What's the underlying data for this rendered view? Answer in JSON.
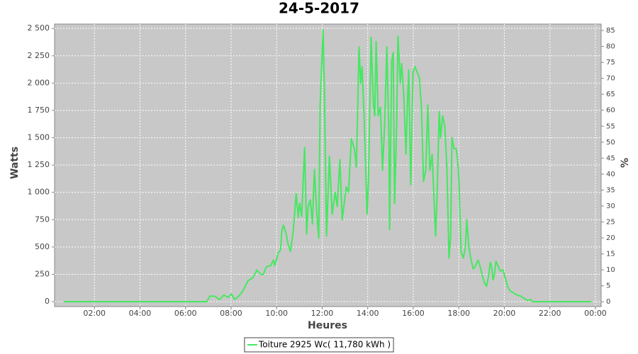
{
  "chart_data": {
    "type": "line",
    "title": "24-5-2017",
    "x_label": "Heures",
    "y_label": "Watts",
    "y2_label": "%",
    "x": [
      0.65,
      6.94,
      7.06,
      7.28,
      7.5,
      7.68,
      7.87,
      8.02,
      8.15,
      8.34,
      8.52,
      8.74,
      8.96,
      9.14,
      9.3,
      9.42,
      9.55,
      9.74,
      9.86,
      9.92,
      10.08,
      10.17,
      10.23,
      10.3,
      10.42,
      10.51,
      10.61,
      10.73,
      10.86,
      10.95,
      11.01,
      11.1,
      11.23,
      11.32,
      11.38,
      11.48,
      11.57,
      11.66,
      11.76,
      11.85,
      11.91,
      12.04,
      12.1,
      12.19,
      12.32,
      12.44,
      12.57,
      12.66,
      12.78,
      12.88,
      12.97,
      13.06,
      13.16,
      13.28,
      13.41,
      13.5,
      13.62,
      13.69,
      13.75,
      13.84,
      13.97,
      14.03,
      14.15,
      14.25,
      14.31,
      14.37,
      14.46,
      14.56,
      14.65,
      14.74,
      14.84,
      14.93,
      14.96,
      15.05,
      15.12,
      15.18,
      15.27,
      15.33,
      15.43,
      15.49,
      15.58,
      15.68,
      15.74,
      15.8,
      15.89,
      15.99,
      16.08,
      16.17,
      16.27,
      16.36,
      16.45,
      16.55,
      16.64,
      16.73,
      16.83,
      16.92,
      16.98,
      17.05,
      17.14,
      17.2,
      17.29,
      17.39,
      17.48,
      17.57,
      17.64,
      17.7,
      17.79,
      17.88,
      17.95,
      18.01,
      18.1,
      18.2,
      18.29,
      18.35,
      18.44,
      18.54,
      18.63,
      18.72,
      18.85,
      18.94,
      19.04,
      19.13,
      19.22,
      19.32,
      19.38,
      19.44,
      19.5,
      19.56,
      19.63,
      19.72,
      19.81,
      19.94,
      20.06,
      20.16,
      20.25,
      20.4,
      20.56,
      20.72,
      20.87,
      21.03,
      21.15,
      21.24,
      23.83
    ],
    "series": [
      {
        "name": "Toiture 2925 Wc( 11,780 kWh )",
        "color": "#44e860",
        "values": [
          0,
          0,
          50,
          50,
          20,
          60,
          40,
          70,
          20,
          50,
          100,
          190,
          220,
          290,
          250,
          250,
          320,
          330,
          380,
          330,
          450,
          470,
          650,
          700,
          620,
          520,
          460,
          650,
          990,
          770,
          900,
          780,
          1410,
          620,
          870,
          930,
          710,
          1210,
          820,
          580,
          1800,
          2490,
          1900,
          600,
          1330,
          800,
          1000,
          870,
          1300,
          750,
          900,
          1050,
          1000,
          1490,
          1400,
          1230,
          2330,
          2000,
          2150,
          1700,
          800,
          1100,
          2420,
          1800,
          1700,
          2380,
          1700,
          1780,
          1200,
          1600,
          2330,
          1500,
          660,
          2200,
          2280,
          900,
          1600,
          2430,
          2000,
          2180,
          1900,
          1350,
          1800,
          2120,
          1070,
          2100,
          2150,
          2100,
          2050,
          1780,
          1100,
          1200,
          1800,
          1200,
          1350,
          900,
          600,
          1000,
          1740,
          1500,
          1700,
          1600,
          1200,
          400,
          600,
          1500,
          1400,
          1400,
          1300,
          1100,
          450,
          400,
          500,
          750,
          500,
          380,
          300,
          320,
          380,
          320,
          230,
          170,
          140,
          250,
          360,
          320,
          200,
          240,
          370,
          330,
          280,
          290,
          200,
          130,
          100,
          80,
          60,
          50,
          30,
          10,
          20,
          0,
          0
        ]
      }
    ],
    "xlim": [
      0.25,
      24.25
    ],
    "xticks": [
      {
        "value": 2,
        "label": "02:00"
      },
      {
        "value": 4,
        "label": "04:00"
      },
      {
        "value": 6,
        "label": "06:00"
      },
      {
        "value": 8,
        "label": "08:00"
      },
      {
        "value": 10,
        "label": "10:00"
      },
      {
        "value": 12,
        "label": "12:00"
      },
      {
        "value": 14,
        "label": "14:00"
      },
      {
        "value": 16,
        "label": "16:00"
      },
      {
        "value": 18,
        "label": "18:00"
      },
      {
        "value": 20,
        "label": "20:00"
      },
      {
        "value": 22,
        "label": "22:00"
      },
      {
        "value": 24,
        "label": "00:00"
      }
    ],
    "ylim": [
      -45,
      2540
    ],
    "yticks": [
      0,
      250,
      500,
      750,
      {
        "value": 1000,
        "label": "1 000"
      },
      {
        "value": 1250,
        "label": "1 250"
      },
      {
        "value": 1500,
        "label": "1 500"
      },
      {
        "value": 1750,
        "label": "1 750"
      },
      {
        "value": 2000,
        "label": "2 000"
      },
      {
        "value": 2250,
        "label": "2 250"
      },
      {
        "value": 2500,
        "label": "2 500"
      }
    ],
    "y2lim": [
      -1.5,
      87
    ],
    "y2ticks": [
      0,
      5,
      10,
      15,
      20,
      25,
      30,
      35,
      40,
      45,
      50,
      55,
      60,
      65,
      70,
      75,
      80,
      85
    ],
    "grid": true,
    "background": "#c8c8c8",
    "legend": "bottom"
  }
}
